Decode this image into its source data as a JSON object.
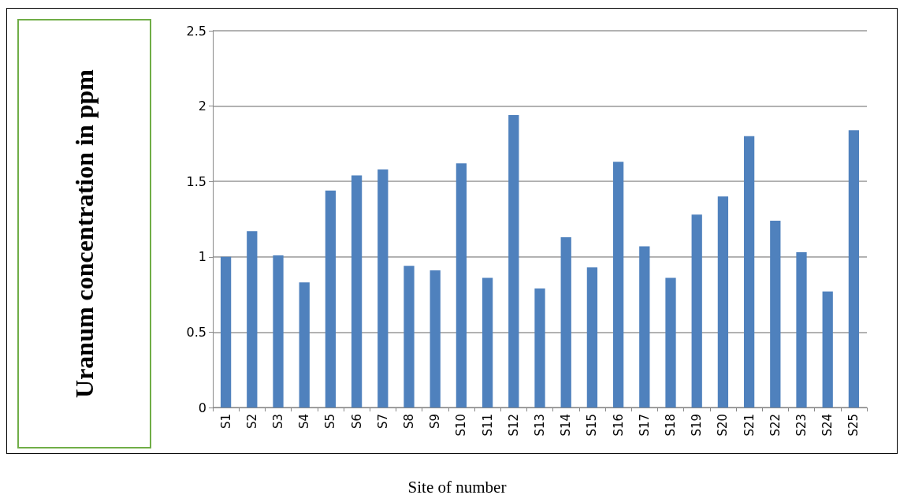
{
  "chart_data": {
    "type": "bar",
    "xlabel": "Site of number",
    "ylabel": "Uranum concentration in ppm",
    "categories": [
      "S1",
      "S2",
      "S3",
      "S4",
      "S5",
      "S6",
      "S7",
      "S8",
      "S9",
      "S10",
      "S11",
      "S12",
      "S13",
      "S14",
      "S15",
      "S16",
      "S17",
      "S18",
      "S19",
      "S20",
      "S21",
      "S22",
      "S23",
      "S24",
      "S25"
    ],
    "values": [
      1.0,
      1.17,
      1.01,
      0.83,
      1.44,
      1.54,
      1.58,
      0.94,
      0.91,
      1.62,
      0.86,
      1.94,
      0.79,
      1.13,
      0.93,
      1.63,
      1.07,
      0.86,
      1.28,
      1.4,
      1.8,
      1.24,
      1.03,
      0.77,
      1.84
    ],
    "color": "#4f81bd",
    "ylim": [
      0,
      2.5
    ],
    "yticks": [
      0,
      0.5,
      1,
      1.5,
      2,
      2.5
    ],
    "grid": "y"
  }
}
